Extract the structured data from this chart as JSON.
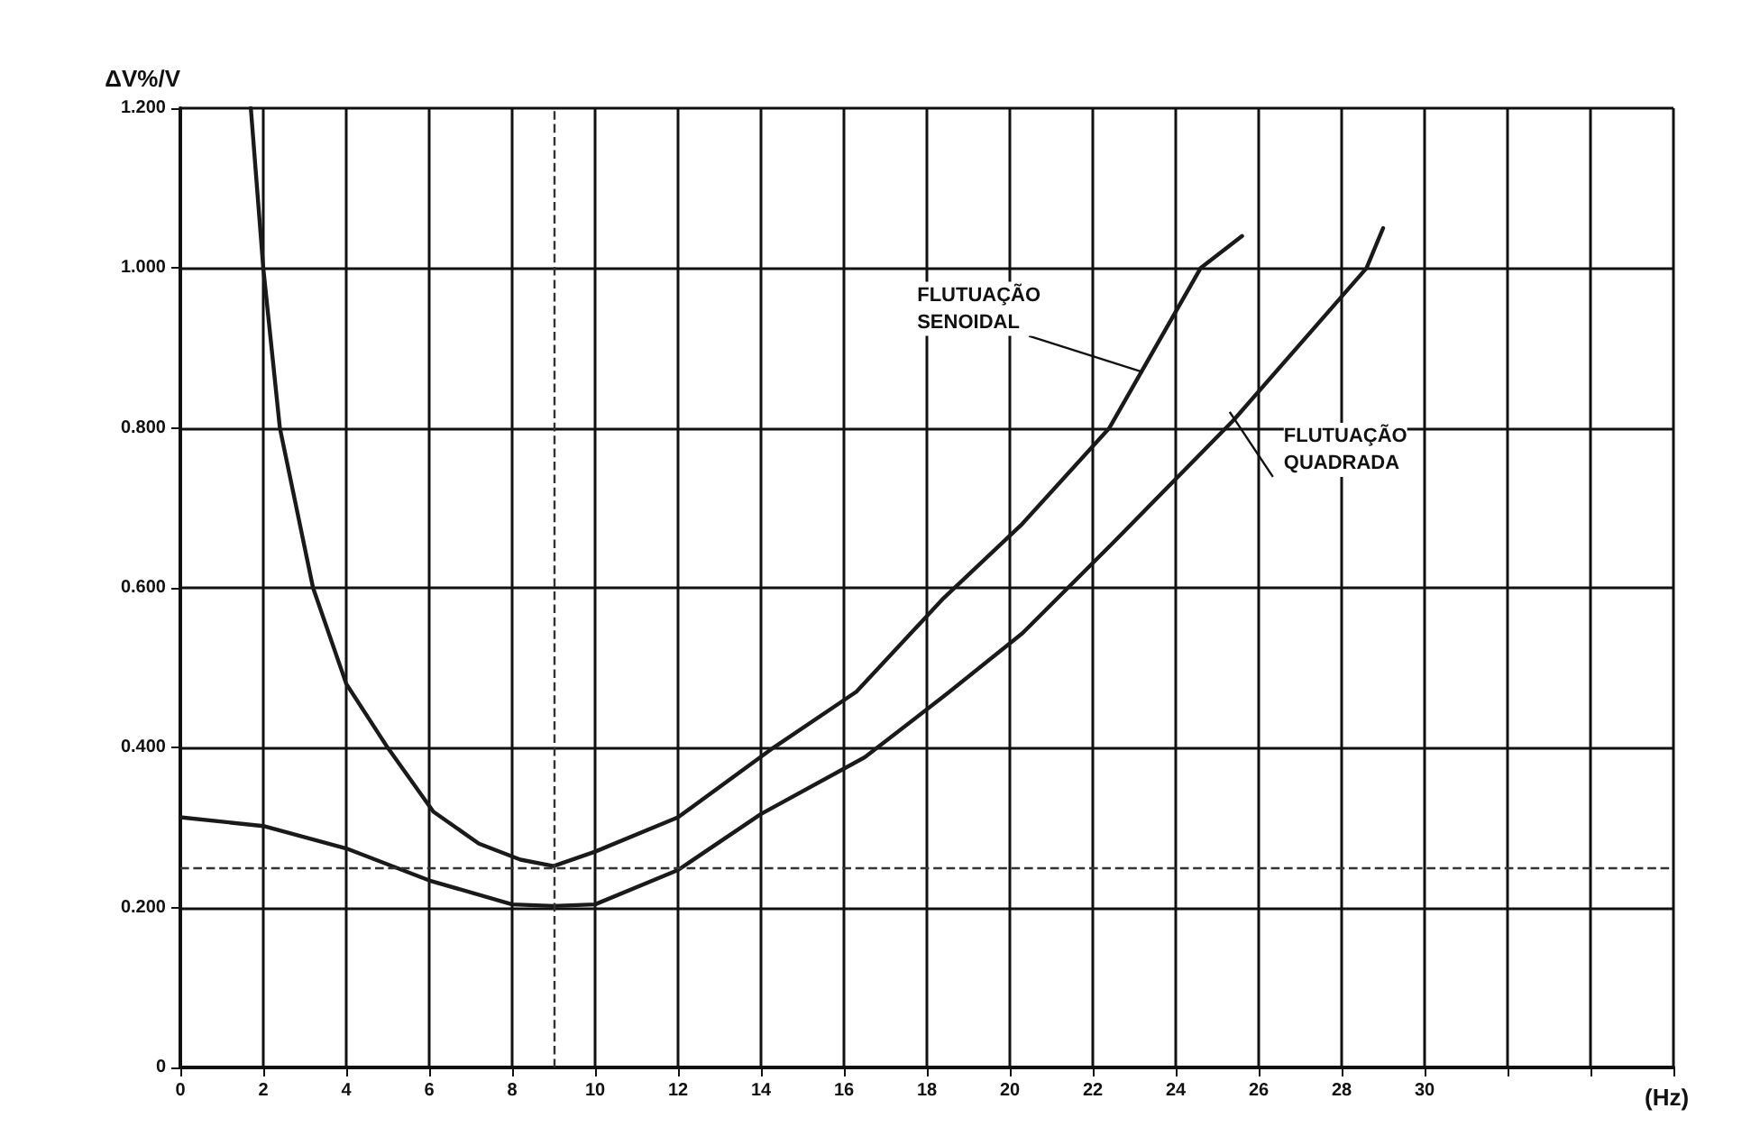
{
  "chart_data": {
    "type": "line",
    "xlabel": "(Hz)",
    "ylabel": "ΔV%/V",
    "xlim": [
      0,
      36
    ],
    "xticks": [
      0,
      2,
      4,
      6,
      8,
      10,
      12,
      14,
      16,
      18,
      20,
      22,
      24,
      26,
      28,
      30,
      {
        "value": 32,
        "label": null
      },
      {
        "value": 34,
        "label": null
      },
      {
        "value": 36,
        "label": null
      }
    ],
    "ylim": [
      0,
      1.2
    ],
    "yticks": [
      0,
      {
        "value": 0.2,
        "label": "0.200"
      },
      {
        "value": 0.4,
        "label": "0.400"
      },
      {
        "value": 0.6,
        "label": "0.600"
      },
      {
        "value": 0.8,
        "label": "0.800"
      },
      {
        "value": 1,
        "label": "1.000"
      },
      {
        "value": 1.2,
        "label": "1.200"
      }
    ],
    "grid": true,
    "marker": "none",
    "line_style": "solid",
    "series": [
      {
        "color": "#1a1a1a",
        "x": [
          1.7,
          2.0,
          2.4,
          3.2,
          4.0,
          5.0,
          6.1,
          7.2,
          8.2,
          9.0,
          10.0,
          12.0,
          14.3,
          16.3,
          18.4,
          20.3,
          22.4,
          24.6,
          25.6
        ],
        "values": [
          1.2,
          1.0,
          0.8,
          0.6,
          0.48,
          0.4,
          0.32,
          0.28,
          0.26,
          0.252,
          0.27,
          0.313,
          0.4,
          0.47,
          0.587,
          0.68,
          0.8,
          1.0,
          1.04
        ]
      },
      {
        "color": "#1a1a1a",
        "x": [
          0,
          2,
          4,
          6,
          8,
          9,
          10,
          12,
          14,
          16.5,
          18.4,
          20.3,
          22.5,
          25.4,
          28.6,
          29.0
        ],
        "values": [
          0.313,
          0.302,
          0.274,
          0.234,
          0.204,
          0.202,
          0.204,
          0.247,
          0.317,
          0.388,
          0.464,
          0.543,
          0.657,
          0.81,
          1.0,
          1.05
        ]
      }
    ],
    "ref_lines": [
      {
        "axis": "y",
        "value": 0.25,
        "line_style": "dashed",
        "color": "#333333"
      },
      {
        "axis": "x",
        "value": 9,
        "line_style": "dashed",
        "color": "#333333"
      }
    ],
    "annotations": [
      {
        "text": "FLUTUAÇÃO\nSENOIDAL",
        "x": 23.2,
        "y": 0.87
      },
      {
        "text": "FLUTUAÇÃO\nQUADRADA",
        "x": 25.3,
        "y": 0.82
      }
    ]
  }
}
